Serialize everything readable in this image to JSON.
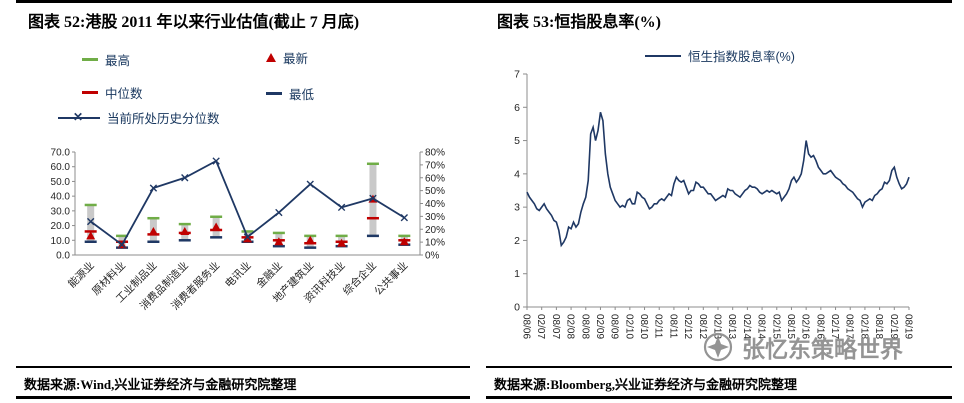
{
  "page": {
    "title_left": "图表 52:港股 2011 年以来行业估值(截止 7 月底)",
    "title_right": "图表 53:恒指股息率(%)",
    "source_left": "数据来源:Wind,兴业证券经济与金融研究院整理",
    "source_right": "数据来源:Bloomberg,兴业证券经济与金融研究院整理",
    "watermark": "张忆东策略世界"
  },
  "icons": {
    "x_marker": "✕",
    "watermark_logo": "compass-star"
  },
  "colors": {
    "navy": "#1F3864",
    "red": "#C00000",
    "green": "#70AD47",
    "gray_bar": "#C9C9C9",
    "axis": "#8C8C8C",
    "tick_text": "#262626",
    "watermark": "#8C8C8C"
  },
  "chart_data": [
    {
      "type": "bar",
      "subtype": "high-low-range-with-percentile-line",
      "title": "港股2011年以来行业估值(截止7月底)",
      "legend": [
        "最高",
        "最新",
        "中位数",
        "最低",
        "当前所处历史分位数"
      ],
      "categories": [
        "能源业",
        "原材料业",
        "工业制品业",
        "消费品制造业",
        "消费者服务业",
        "电讯业",
        "金融业",
        "地产建筑业",
        "资讯科技业",
        "综合企业",
        "公共事业"
      ],
      "series": {
        "high": [
          34,
          13,
          25,
          21,
          26,
          16,
          15,
          13,
          13,
          62,
          13
        ],
        "latest": [
          13,
          7,
          16,
          16,
          19,
          11,
          9,
          10,
          8,
          38,
          9
        ],
        "median": [
          16,
          9,
          14,
          15,
          17,
          12,
          10,
          8,
          9,
          25,
          10
        ],
        "low": [
          9,
          5,
          9,
          10,
          12,
          9,
          6,
          5,
          6,
          13,
          7
        ],
        "percentile": [
          26,
          8,
          52,
          60,
          73,
          14,
          33,
          55,
          37,
          44,
          29
        ]
      },
      "ylim_left": [
        0,
        70
      ],
      "yticks_left": [
        "0.0",
        "10.0",
        "20.0",
        "30.0",
        "40.0",
        "50.0",
        "60.0",
        "70.0"
      ],
      "ylim_right": [
        0,
        80
      ],
      "yticks_right": [
        "0%",
        "10%",
        "20%",
        "30%",
        "40%",
        "50%",
        "60%",
        "70%",
        "80%"
      ],
      "grid": false,
      "legend_position": "top"
    },
    {
      "type": "line",
      "title": "恒指股息率(%)",
      "legend": [
        "恒生指数股息率(%)"
      ],
      "ylim": [
        0,
        7
      ],
      "yticks": [
        "0",
        "1",
        "2",
        "3",
        "4",
        "5",
        "6",
        "7"
      ],
      "x_ticks": [
        "08/06",
        "02/07",
        "08/07",
        "02/08",
        "08/08",
        "02/09",
        "08/09",
        "02/10",
        "08/10",
        "02/11",
        "08/11",
        "02/12",
        "08/12",
        "02/13",
        "08/13",
        "02/14",
        "08/14",
        "02/15",
        "08/15",
        "02/16",
        "08/16",
        "02/17",
        "08/17",
        "02/18",
        "08/18",
        "02/19",
        "08/19"
      ],
      "tick_every": 6,
      "x_start": "08/06",
      "x_freq": "monthly",
      "values": [
        3.45,
        3.3,
        3.2,
        3.1,
        2.95,
        2.9,
        3.0,
        3.1,
        2.95,
        2.85,
        2.75,
        2.6,
        2.55,
        2.3,
        1.85,
        1.95,
        2.1,
        2.4,
        2.35,
        2.55,
        2.4,
        2.5,
        2.85,
        3.1,
        3.3,
        3.8,
        5.2,
        5.4,
        5.0,
        5.3,
        5.85,
        5.6,
        4.6,
        4.0,
        3.6,
        3.4,
        3.2,
        3.1,
        3.0,
        3.05,
        3.0,
        3.2,
        3.25,
        3.1,
        3.1,
        3.45,
        3.4,
        3.3,
        3.25,
        3.1,
        2.95,
        3.0,
        3.1,
        3.1,
        3.2,
        3.25,
        3.2,
        3.3,
        3.4,
        3.35,
        3.7,
        3.9,
        3.8,
        3.75,
        3.8,
        3.6,
        3.4,
        3.5,
        3.5,
        3.75,
        3.7,
        3.6,
        3.6,
        3.5,
        3.4,
        3.4,
        3.3,
        3.2,
        3.25,
        3.3,
        3.35,
        3.3,
        3.55,
        3.5,
        3.5,
        3.4,
        3.35,
        3.3,
        3.4,
        3.5,
        3.55,
        3.65,
        3.6,
        3.6,
        3.55,
        3.45,
        3.4,
        3.45,
        3.5,
        3.45,
        3.5,
        3.45,
        3.4,
        3.45,
        3.2,
        3.3,
        3.4,
        3.55,
        3.8,
        3.9,
        3.75,
        3.85,
        4.0,
        4.4,
        5.0,
        4.6,
        4.5,
        4.55,
        4.4,
        4.2,
        4.1,
        4.0,
        4.0,
        4.05,
        4.1,
        4.0,
        3.9,
        3.85,
        3.8,
        3.7,
        3.65,
        3.55,
        3.5,
        3.45,
        3.35,
        3.25,
        3.2,
        3.0,
        3.15,
        3.2,
        3.25,
        3.2,
        3.35,
        3.4,
        3.5,
        3.55,
        3.75,
        3.7,
        3.8,
        4.1,
        4.2,
        3.9,
        3.7,
        3.55,
        3.6,
        3.7,
        3.9
      ],
      "grid": false,
      "legend_position": "top"
    }
  ]
}
